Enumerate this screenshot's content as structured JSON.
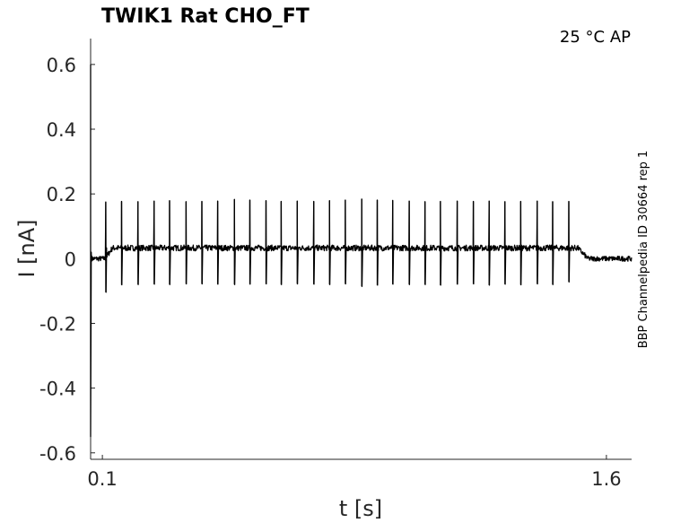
{
  "chart_data": {
    "type": "line",
    "title": "TWIK1  Rat  CHO_FT",
    "annotation": "25 °C  AP",
    "side_label": "BBP Channelpedia ID 30664 rep 1",
    "xlabel": "t [s]",
    "ylabel": "I [nA]",
    "xlim": [
      0.065,
      1.675
    ],
    "ylim": [
      -0.62,
      0.68
    ],
    "x_ticks": [
      0.1,
      1.6
    ],
    "x_tick_labels": [
      "0.1",
      "1.6"
    ],
    "y_ticks": [
      0.6,
      0.4,
      0.2,
      0,
      -0.2,
      -0.4,
      -0.6
    ],
    "y_tick_labels": [
      "0.6",
      "0.4",
      "0.2",
      "0",
      "-0.2",
      "-0.4",
      "-0.6"
    ],
    "grid": false,
    "legend": "none",
    "color": "#000000",
    "series": [
      {
        "stimulus_interval_s": [
          0.11,
          1.515
        ],
        "baseline_nA": 0.0,
        "steady_nA": 0.033,
        "onset_transient_nA": [
          -0.55,
          0.6
        ],
        "spike_times_s": [
          0.11,
          0.157,
          0.206,
          0.254,
          0.3,
          0.349,
          0.396,
          0.443,
          0.493,
          0.539,
          0.587,
          0.632,
          0.68,
          0.729,
          0.776,
          0.823,
          0.872,
          0.918,
          0.964,
          1.013,
          1.06,
          1.106,
          1.156,
          1.204,
          1.251,
          1.298,
          1.345,
          1.394,
          1.44,
          1.488
        ],
        "spike_peaks_nA": [
          0.175,
          0.177,
          0.176,
          0.178,
          0.179,
          0.176,
          0.177,
          0.178,
          0.183,
          0.181,
          0.179,
          0.177,
          0.178,
          0.177,
          0.179,
          0.181,
          0.184,
          0.181,
          0.18,
          0.178,
          0.176,
          0.177,
          0.178,
          0.177,
          0.178,
          0.176,
          0.177,
          0.178,
          0.176,
          0.177
        ],
        "spike_troughs_nA": [
          -0.104,
          -0.081,
          -0.08,
          -0.079,
          -0.08,
          -0.078,
          -0.078,
          -0.079,
          -0.08,
          -0.079,
          -0.078,
          -0.08,
          -0.078,
          -0.079,
          -0.08,
          -0.078,
          -0.086,
          -0.082,
          -0.079,
          -0.08,
          -0.08,
          -0.082,
          -0.079,
          -0.078,
          -0.082,
          -0.079,
          -0.081,
          -0.078,
          -0.08,
          -0.072
        ]
      }
    ]
  }
}
